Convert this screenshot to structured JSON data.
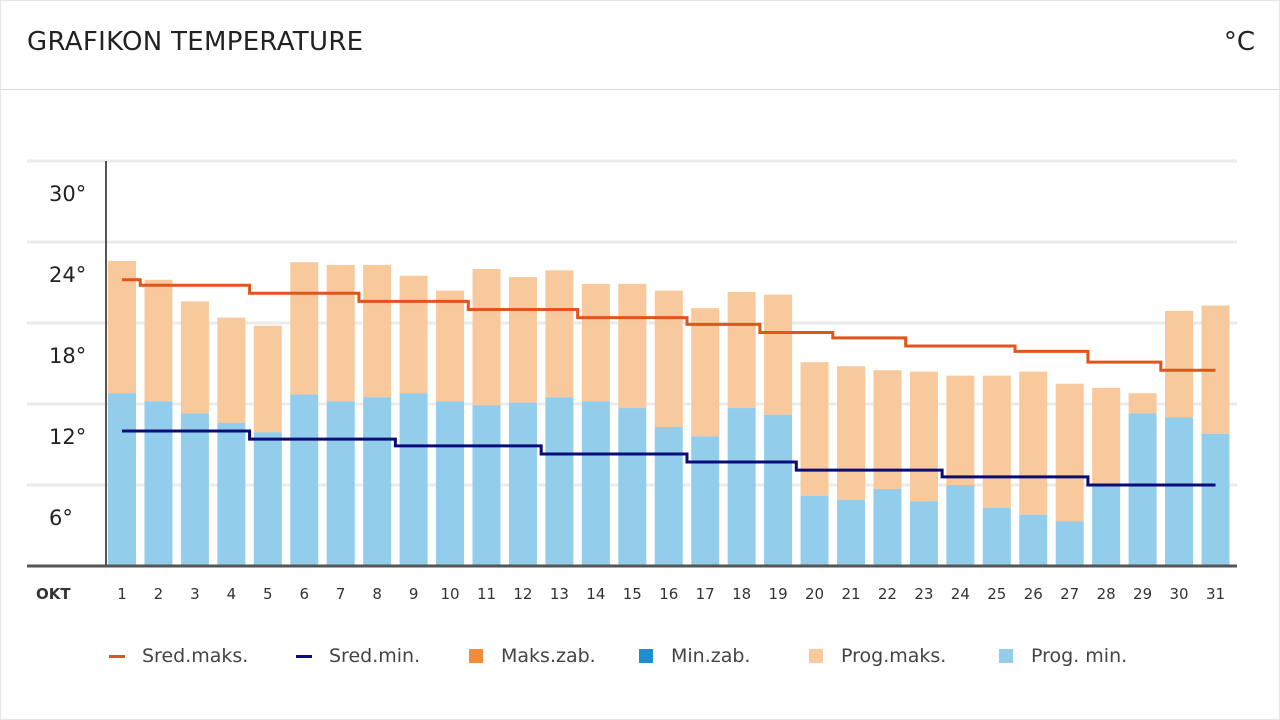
{
  "header": {
    "title": "GRAFIKON TEMPERATURE",
    "unit": "°C"
  },
  "colors": {
    "sred_maks": "#e2541b",
    "sred_min": "#0b0b7a",
    "maks_zab": "#f08c3a",
    "min_zab": "#1d8fd1",
    "prog_maks": "#f7c99c",
    "prog_min": "#92cdec",
    "grid": "#ebebeb",
    "axis": "#555555"
  },
  "chart_data": {
    "type": "bar",
    "month_label": "OKT",
    "categories": [
      "1",
      "2",
      "3",
      "4",
      "5",
      "6",
      "7",
      "8",
      "9",
      "10",
      "11",
      "12",
      "13",
      "14",
      "15",
      "16",
      "17",
      "18",
      "19",
      "20",
      "21",
      "22",
      "23",
      "24",
      "25",
      "26",
      "27",
      "28",
      "29",
      "30",
      "31"
    ],
    "ylim": [
      0,
      30
    ],
    "yticks": [
      6,
      12,
      18,
      24,
      30
    ],
    "ytick_labels": [
      "6°",
      "12°",
      "18°",
      "24°",
      "30°"
    ],
    "grid": true,
    "legend_position": "bottom",
    "series": [
      {
        "name": "Prog.maks.",
        "kind": "bar",
        "values": [
          22.6,
          21.2,
          19.6,
          18.4,
          17.8,
          22.5,
          22.3,
          22.3,
          21.5,
          20.4,
          22.0,
          21.4,
          21.9,
          20.9,
          20.9,
          20.4,
          19.1,
          20.3,
          20.1,
          15.1,
          14.8,
          14.5,
          14.4,
          14.1,
          14.1,
          14.4,
          13.5,
          13.2,
          12.8,
          18.9,
          19.3
        ]
      },
      {
        "name": "Prog. min.",
        "kind": "bar",
        "values": [
          12.8,
          12.2,
          11.3,
          10.6,
          9.9,
          12.7,
          12.2,
          12.5,
          12.8,
          12.2,
          11.9,
          12.1,
          12.5,
          12.2,
          11.7,
          10.3,
          9.6,
          11.7,
          11.2,
          5.2,
          4.9,
          5.7,
          4.8,
          6.0,
          4.3,
          3.8,
          3.3,
          6.0,
          11.3,
          11.0,
          9.8
        ]
      },
      {
        "name": "Sred.maks.",
        "kind": "line",
        "values": [
          21.2,
          20.8,
          20.8,
          20.8,
          20.2,
          20.2,
          20.2,
          19.6,
          19.6,
          19.6,
          19.0,
          19.0,
          19.0,
          18.4,
          18.4,
          18.4,
          17.9,
          17.9,
          17.3,
          17.3,
          16.9,
          16.9,
          16.3,
          16.3,
          16.3,
          15.9,
          15.9,
          15.1,
          15.1,
          14.5,
          14.5
        ]
      },
      {
        "name": "Sred.min.",
        "kind": "line",
        "values": [
          10.0,
          10.0,
          10.0,
          10.0,
          9.4,
          9.4,
          9.4,
          9.4,
          8.9,
          8.9,
          8.9,
          8.9,
          8.3,
          8.3,
          8.3,
          8.3,
          7.7,
          7.7,
          7.7,
          7.1,
          7.1,
          7.1,
          7.1,
          6.6,
          6.6,
          6.6,
          6.6,
          6.0,
          6.0,
          6.0,
          6.0
        ]
      }
    ]
  },
  "legend": [
    {
      "label": "Sred.maks.",
      "shape": "line",
      "color": "#e2541b"
    },
    {
      "label": "Sred.min.",
      "shape": "line",
      "color": "#0b0b7a"
    },
    {
      "label": "Maks.zab.",
      "shape": "box",
      "color": "#f08c3a"
    },
    {
      "label": "Min.zab.",
      "shape": "box",
      "color": "#1d8fd1"
    },
    {
      "label": "Prog.maks.",
      "shape": "box",
      "color": "#f7c99c"
    },
    {
      "label": "Prog. min.",
      "shape": "box",
      "color": "#92cdec"
    }
  ]
}
